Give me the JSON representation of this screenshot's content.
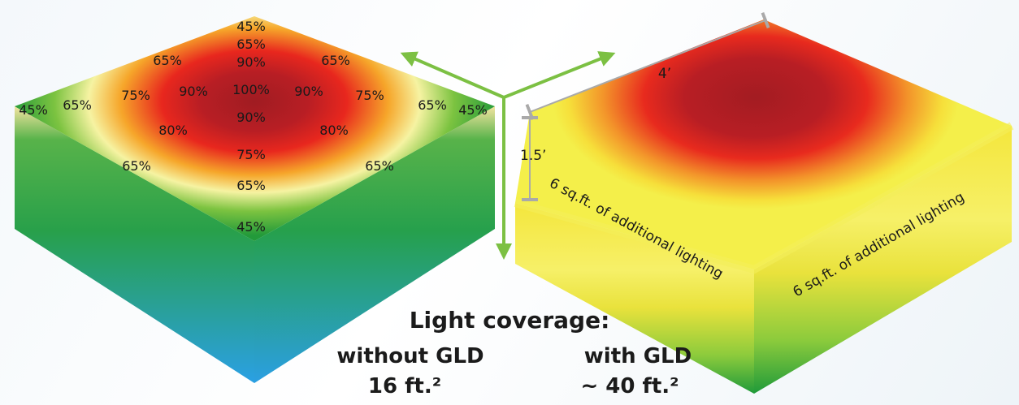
{
  "left_panel": {
    "percentages": [
      "45%",
      "65%",
      "90%",
      "100%",
      "90%",
      "75%",
      "65%",
      "45%",
      "65%",
      "65%",
      "75%",
      "90%",
      "80%",
      "65%",
      "45%",
      "65%",
      "65%",
      "75%",
      "90%",
      "80%",
      "65%",
      "45%"
    ]
  },
  "right_panel": {
    "dimension_top": "4’",
    "dimension_side": "1.5’",
    "additional_left": "6 sq.ft. of additional lighting",
    "additional_right": "6 sq.ft. of additional lighting"
  },
  "caption": {
    "title": "Light coverage:",
    "without_label": "without GLD",
    "with_label": "with GLD",
    "without_value": "16 ft.²",
    "with_value": "~ 40 ft.²"
  },
  "colors": {
    "arrow": "#7cc043",
    "hot": "#b01c22",
    "green": "#2a9a3c",
    "blue": "#2c9fe0",
    "dimension_line": "#a9a9a9"
  }
}
